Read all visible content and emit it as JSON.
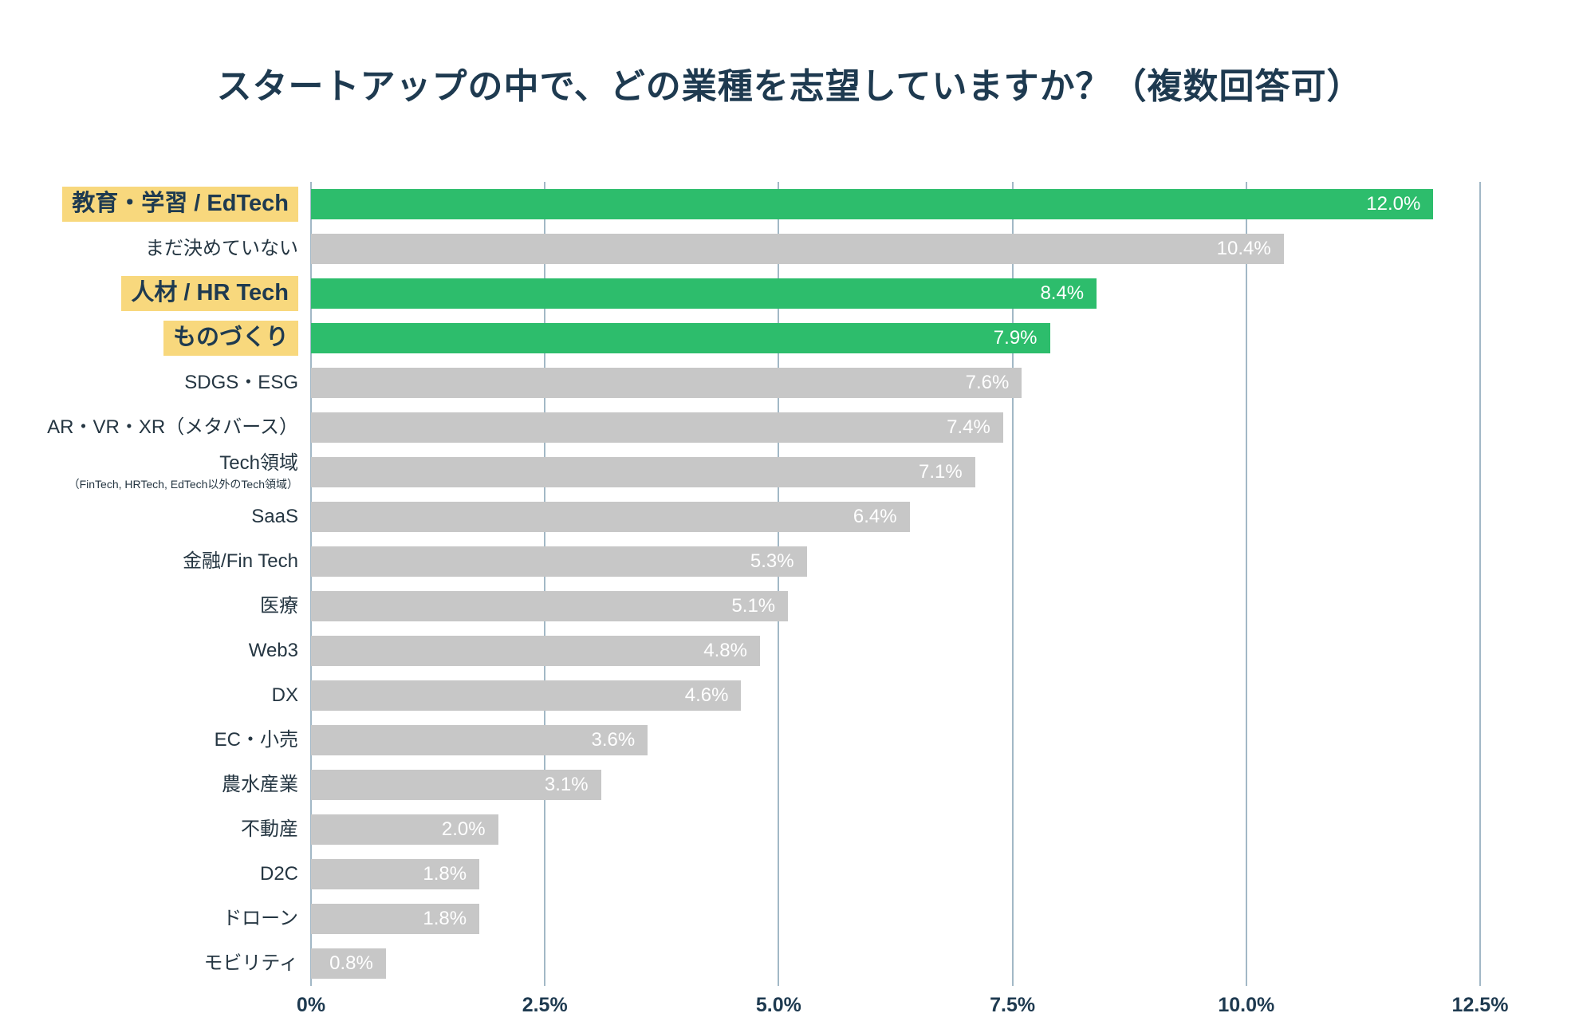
{
  "page": {
    "title": "スタートアップの中で、どの業種を志望していますか？（複数回答可）"
  },
  "chart_data": {
    "type": "bar",
    "orientation": "horizontal",
    "title": "スタートアップの中で、どの業種を志望していますか？（複数回答可）",
    "xlabel": "",
    "ylabel": "",
    "xlim": [
      0,
      12.5
    ],
    "grid": true,
    "x_ticks": [
      "0%",
      "2.5%",
      "5.0%",
      "7.5%",
      "10.0%",
      "12.5%"
    ],
    "x_tick_values": [
      0,
      2.5,
      5.0,
      7.5,
      10.0,
      12.5
    ],
    "colors": {
      "highlight_bar": "#2dbd6c",
      "default_bar": "#c7c7c7",
      "label_highlight_bg": "#f8d87d",
      "title_text": "#1e3a50",
      "category_label_text": "#253642",
      "value_label_text": "#ffffff",
      "gridline": "#a2b8c6",
      "background": "#ffffff"
    },
    "categories": [
      "教育・学習 / EdTech",
      "まだ決めていない",
      "人材 / HR Tech",
      "ものづくり",
      "SDGS・ESG",
      "AR・VR・XR（メタバース）",
      "Tech領域",
      "SaaS",
      "金融/Fin Tech",
      "医療",
      "Web3",
      "DX",
      "EC・小売",
      "農水産業",
      "不動産",
      "D2C",
      "ドローン",
      "モビリティ"
    ],
    "values": [
      12.0,
      10.4,
      8.4,
      7.9,
      7.6,
      7.4,
      7.1,
      6.4,
      5.3,
      5.1,
      4.8,
      4.6,
      3.6,
      3.1,
      2.0,
      1.8,
      1.8,
      0.8
    ],
    "items": [
      {
        "label": "教育・学習 / EdTech",
        "sublabel": "",
        "value": 12.0,
        "display": "12.0%",
        "highlighted": true
      },
      {
        "label": "まだ決めていない",
        "sublabel": "",
        "value": 10.4,
        "display": "10.4%",
        "highlighted": false
      },
      {
        "label": "人材 / HR Tech",
        "sublabel": "",
        "value": 8.4,
        "display": "8.4%",
        "highlighted": true
      },
      {
        "label": "ものづくり",
        "sublabel": "",
        "value": 7.9,
        "display": "7.9%",
        "highlighted": true
      },
      {
        "label": "SDGS・ESG",
        "sublabel": "",
        "value": 7.6,
        "display": "7.6%",
        "highlighted": false
      },
      {
        "label": "AR・VR・XR（メタバース）",
        "sublabel": "",
        "value": 7.4,
        "display": "7.4%",
        "highlighted": false
      },
      {
        "label": "Tech領域",
        "sublabel": "（FinTech, HRTech, EdTech以外のTech領域）",
        "value": 7.1,
        "display": "7.1%",
        "highlighted": false
      },
      {
        "label": "SaaS",
        "sublabel": "",
        "value": 6.4,
        "display": "6.4%",
        "highlighted": false
      },
      {
        "label": "金融/Fin Tech",
        "sublabel": "",
        "value": 5.3,
        "display": "5.3%",
        "highlighted": false
      },
      {
        "label": "医療",
        "sublabel": "",
        "value": 5.1,
        "display": "5.1%",
        "highlighted": false
      },
      {
        "label": "Web3",
        "sublabel": "",
        "value": 4.8,
        "display": "4.8%",
        "highlighted": false
      },
      {
        "label": "DX",
        "sublabel": "",
        "value": 4.6,
        "display": "4.6%",
        "highlighted": false
      },
      {
        "label": "EC・小売",
        "sublabel": "",
        "value": 3.6,
        "display": "3.6%",
        "highlighted": false
      },
      {
        "label": "農水産業",
        "sublabel": "",
        "value": 3.1,
        "display": "3.1%",
        "highlighted": false
      },
      {
        "label": "不動産",
        "sublabel": "",
        "value": 2.0,
        "display": "2.0%",
        "highlighted": false
      },
      {
        "label": "D2C",
        "sublabel": "",
        "value": 1.8,
        "display": "1.8%",
        "highlighted": false
      },
      {
        "label": "ドローン",
        "sublabel": "",
        "value": 1.8,
        "display": "1.8%",
        "highlighted": false
      },
      {
        "label": "モビリティ",
        "sublabel": "",
        "value": 0.8,
        "display": "0.8%",
        "highlighted": false
      }
    ]
  }
}
